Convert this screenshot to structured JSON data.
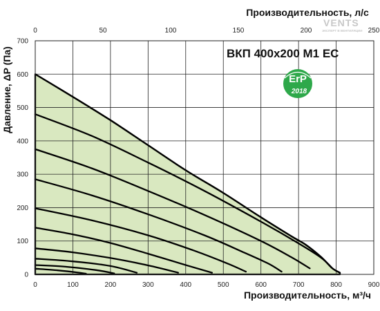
{
  "chart_data": {
    "type": "line",
    "title": "ВКП 400x200 М1 ЕС",
    "xlabel": "Производительность, м³/ч",
    "x2label": "Производительность, л/с",
    "ylabel": "Давление, ΔP (Па)",
    "xlim": [
      0,
      900
    ],
    "ylim": [
      0,
      700
    ],
    "x2lim": [
      0,
      250
    ],
    "x_ticks": [
      "0",
      "100",
      "200",
      "300",
      "400",
      "500",
      "600",
      "700",
      "800",
      "900"
    ],
    "y_ticks": [
      "0",
      "100",
      "200",
      "300",
      "400",
      "500",
      "600",
      "700"
    ],
    "x2_ticks": [
      "0",
      "50",
      "100",
      "150",
      "200",
      "250"
    ],
    "grid": true,
    "envelope": {
      "x": [
        0,
        100,
        200,
        300,
        400,
        500,
        600,
        680,
        720,
        760,
        790,
        810
      ],
      "y": [
        600,
        532,
        462,
        387,
        312,
        244,
        171,
        115,
        88,
        52,
        18,
        5
      ]
    },
    "series": [
      {
        "x": [
          0,
          150,
          300,
          450,
          600,
          700,
          760,
          790
        ],
        "y": [
          480,
          415,
          335,
          250,
          158,
          93,
          50,
          18
        ]
      },
      {
        "x": [
          0,
          150,
          300,
          450,
          600,
          680,
          730
        ],
        "y": [
          375,
          318,
          250,
          178,
          100,
          52,
          18
        ]
      },
      {
        "x": [
          0,
          150,
          300,
          450,
          550,
          620,
          655
        ],
        "y": [
          285,
          237,
          180,
          117,
          68,
          32,
          8
        ]
      },
      {
        "x": [
          0,
          150,
          300,
          420,
          510,
          560
        ],
        "y": [
          198,
          162,
          117,
          72,
          33,
          8
        ]
      },
      {
        "x": [
          0,
          100,
          200,
          300,
          400,
          470
        ],
        "y": [
          140,
          120,
          94,
          62,
          28,
          5
        ]
      },
      {
        "x": [
          0,
          100,
          200,
          300,
          380
        ],
        "y": [
          78,
          66,
          49,
          27,
          5
        ]
      },
      {
        "x": [
          0,
          100,
          200,
          270
        ],
        "y": [
          47,
          39,
          25,
          5
        ]
      },
      {
        "x": [
          0,
          80,
          160,
          210
        ],
        "y": [
          28,
          23,
          13,
          3
        ]
      },
      {
        "x": [
          0,
          60,
          110,
          135
        ],
        "y": [
          17,
          12,
          6,
          2
        ]
      }
    ]
  },
  "badge": {
    "main": "ErP",
    "year": "2018"
  },
  "logo": {
    "name": "VENTS",
    "tagline": "ЭКСПЕРТ В ВЕНТИЛЯЦИИ"
  },
  "colors": {
    "fill": "#d9e8c0",
    "curve": "#000000",
    "badge": "#2ea84a"
  }
}
